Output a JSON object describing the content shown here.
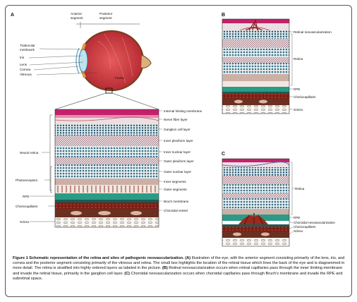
{
  "panels": {
    "a": {
      "letter": "A",
      "segment_top": [
        "Anterior",
        "segment",
        "Posterior",
        "segment"
      ],
      "eye_labels": [
        "Trabecular",
        "meshwork",
        "Iris",
        "Lens",
        "Cornea",
        "Vitreous",
        "Fovea"
      ],
      "layers": [
        "Internal limiting membrane",
        "Nerve fiber layer",
        "Ganglion cell layer",
        "Inner plexiform layer",
        "Inner nuclear layer",
        "Outer plexiform layer",
        "Outer nuclear layer",
        "Inner segments",
        "Outer segments",
        "Bruch membrane",
        "Choroidal vessel"
      ],
      "left_labels": [
        "Neural retina",
        "Photoreceptors",
        "RPE",
        "Choriocapillaris",
        "Sclera"
      ]
    },
    "b": {
      "letter": "B",
      "labels": [
        "Retinal neovascularization",
        "Retina",
        "RPE",
        "Choriocapillaris",
        "Sclera"
      ]
    },
    "c": {
      "letter": "C",
      "labels": [
        "Retina",
        "RPE",
        "Choroidal neovascularization",
        "Choriocapillaris",
        "Sclera"
      ]
    }
  },
  "caption": {
    "title": "Figure 1 Schematic representation of the retina and sites of pathogenic neovascularization.",
    "label_a": "(A)",
    "text_a": "Illustration of the eye, with the anterior segment consisting primarily of the lens, iris, and cornea and the posterior segment consisting primarily of the vitreous and retina. The small box highlights the location of the retinal tissue which lines the back of the eye and is diagrammed in more detail. The retina is stratified into highly ordered layers as labeled in the picture.",
    "label_b": "(B)",
    "text_b": "Retinal neovascularization occurs when retinal capillaries pass through the inner limiting membrane and invade the retinal tissue, primarily in the ganglion cell layer.",
    "label_c": "(C)",
    "text_c": "Choroidal neovascularization occurs when choroidal capillaries pass through Bruch's membrane and invade the RPE and subretinal space."
  }
}
